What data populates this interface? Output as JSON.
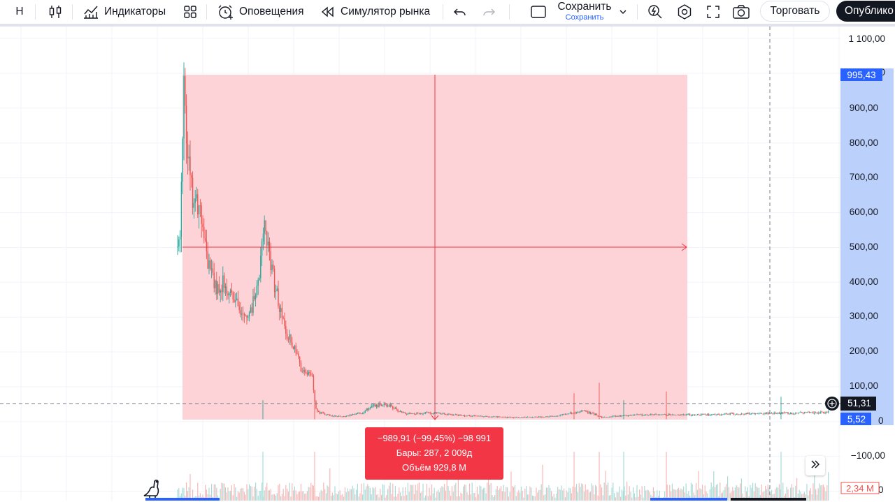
{
  "toolbar": {
    "interval_label": "Н",
    "indicators_label": "Индикаторы",
    "alerts_label": "Оповещения",
    "replay_label": "Симулятор рынка",
    "save_label": "Сохранить",
    "save_sub_label": "Сохранить",
    "trade_label": "Торговать",
    "publish_label": "Опублико"
  },
  "price_axis": {
    "ticks": [
      "1 100,00",
      "900,00",
      "800,00",
      "700,00",
      "600,00",
      "500,00",
      "400,00",
      "300,00",
      "200,00",
      "100,00",
      "−100,00"
    ],
    "top_tag": "995,43",
    "crosshair_tag": "51,31",
    "bottom_tag": "5,52",
    "volume_tag": "2,34 M",
    "partial_zero": "0"
  },
  "measure": {
    "line1": "−989,91 (−99,45%) −98 991",
    "line2": "Бары: 287, 2 009д",
    "line3": "Объём 929,8 M"
  },
  "colors": {
    "up": "#26a69a",
    "down": "#ef5350",
    "measure_fill": "#f23645",
    "axis_highlight": "#2962ff",
    "accent_blue": "#2962ff",
    "dark": "#131722"
  },
  "icons": [
    "chart-style-icon",
    "indicators-icon",
    "templates-icon",
    "alert-icon",
    "replay-icon",
    "undo-icon",
    "redo-icon",
    "layout-icon",
    "chevron-down-icon",
    "quick-search-icon",
    "settings-icon",
    "fullscreen-icon",
    "camera-icon",
    "plus-circle-icon",
    "double-chevron-right-icon",
    "dino-logo-icon"
  ]
}
